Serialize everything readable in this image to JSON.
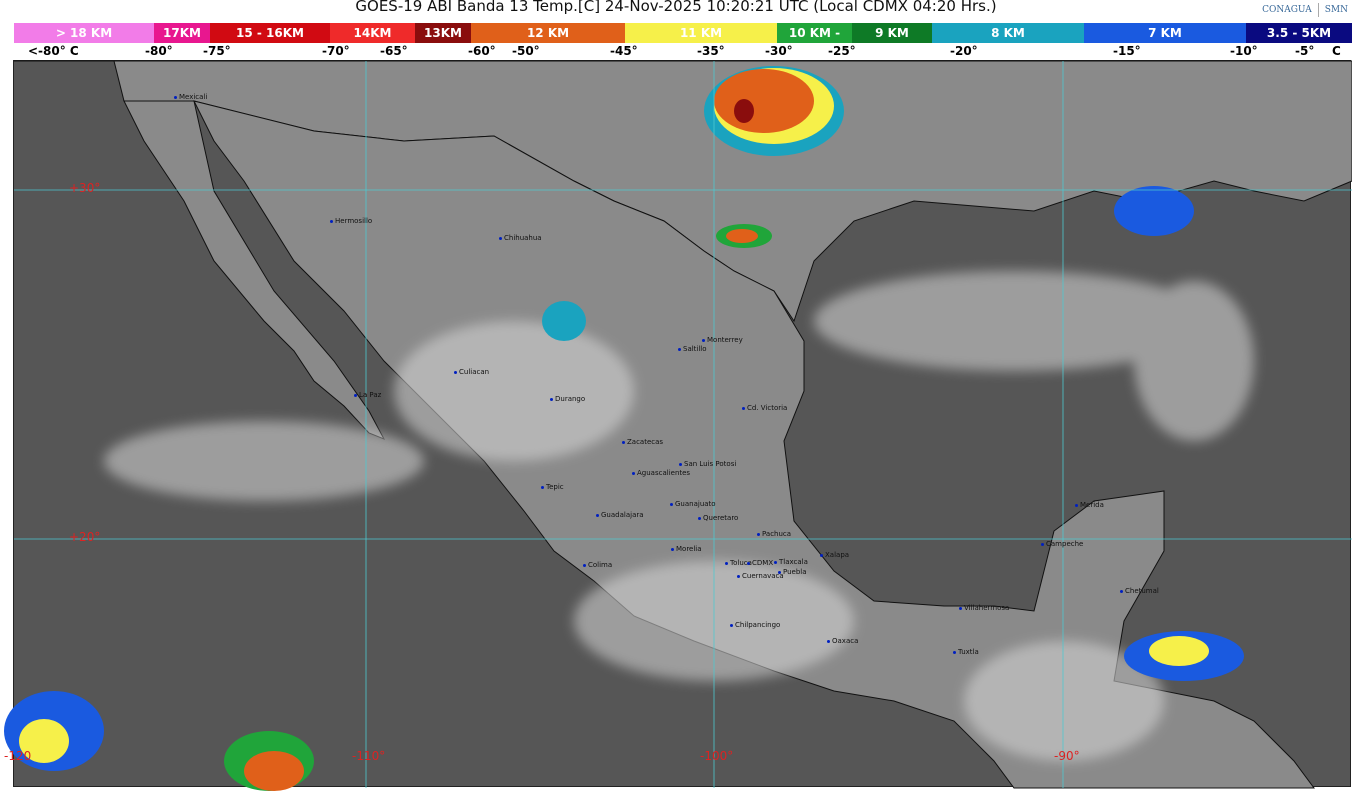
{
  "header": {
    "title": "GOES-19 ABI Banda 13 Temp.[C] 24-Nov-2025 10:20:21 UTC (Local CDMX  04:20 Hrs.)",
    "logo_1": "CONAGUA",
    "logo_2": "SMN"
  },
  "legend": {
    "bands": [
      {
        "label": "> 18 KM",
        "color": "#f27ce8"
      },
      {
        "label": "17KM",
        "color": "#e8178f"
      },
      {
        "label": "15 - 16KM",
        "color": "#d10a12"
      },
      {
        "label": "14KM",
        "color": "#ef2a2a"
      },
      {
        "label": "13KM",
        "color": "#8a0d0d"
      },
      {
        "label": "12 KM",
        "color": "#e0601a"
      },
      {
        "label": "11 KM",
        "color": "#f6f04a"
      },
      {
        "label": "10 KM -",
        "color": "#20a53a"
      },
      {
        "label": "9 KM",
        "color": "#0e7a26"
      },
      {
        "label": "8 KM",
        "color": "#1aa3bf"
      },
      {
        "label": "7 KM",
        "color": "#1a5ae0"
      },
      {
        "label": "3.5 - 5KM",
        "color": "#0a0a80"
      }
    ],
    "temps": [
      "<-80° C",
      "-80°",
      "-75°",
      "-70°",
      "-65°",
      "-60°",
      "-50°",
      "-45°",
      "-35°",
      "-30°",
      "-25°",
      "-20°",
      "-15°",
      "-10°",
      "-5°",
      "C"
    ]
  },
  "map": {
    "latitudes": [
      "+30°",
      "+20°"
    ],
    "longitudes": [
      "-120",
      "-110°",
      "-100°",
      "-90°"
    ],
    "cities": [
      "Mexicali",
      "Hermosillo",
      "Chihuahua",
      "La Paz",
      "Culiacan",
      "Durango",
      "Saltillo",
      "Monterrey",
      "Cd. Victoria",
      "Zacatecas",
      "San Luis Potosi",
      "Aguascalientes",
      "Tepic",
      "Guanajuato",
      "Guadalajara",
      "Queretaro",
      "Pachuca",
      "Morelia",
      "Xalapa",
      "Colima",
      "Toluca",
      "CDMX",
      "Tlaxcala",
      "Puebla",
      "Cuernavaca",
      "Chilpancingo",
      "Oaxaca",
      "Villahermosa",
      "Tuxtla",
      "Campeche",
      "Merida",
      "Chetumal"
    ]
  }
}
